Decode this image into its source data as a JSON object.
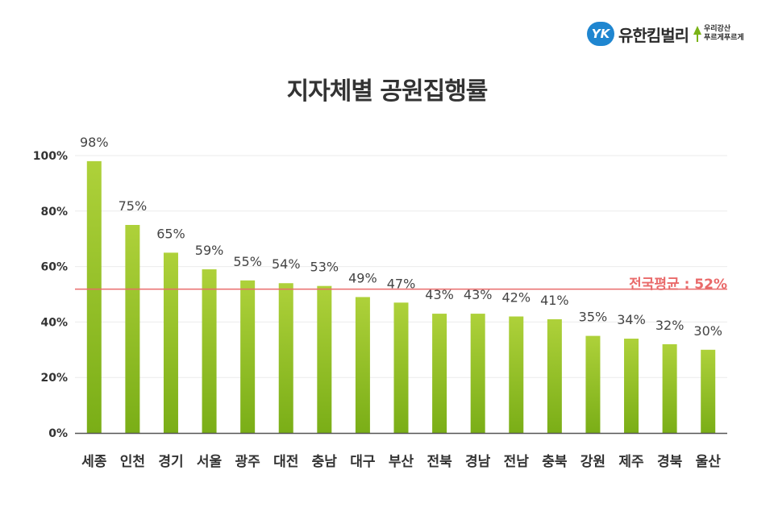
{
  "logo": {
    "brand": "유한킴벌리",
    "slogan_line1": "우리강산",
    "slogan_line2": "푸르게푸르게",
    "colors": {
      "brand": "#1f86d0",
      "tree": "#7ab317"
    }
  },
  "chart_data": {
    "type": "bar",
    "title": "지자체별 공원집행률",
    "xlabel": "",
    "ylabel": "",
    "ylim": [
      0,
      100
    ],
    "yticks": [
      0,
      20,
      40,
      60,
      80,
      100
    ],
    "ytick_labels": [
      "0%",
      "20%",
      "40%",
      "60%",
      "80%",
      "100%"
    ],
    "grid": true,
    "categories": [
      "세종",
      "인천",
      "경기",
      "서울",
      "광주",
      "대전",
      "충남",
      "대구",
      "부산",
      "전북",
      "경남",
      "전남",
      "충북",
      "강원",
      "제주",
      "경북",
      "울산"
    ],
    "values": [
      98,
      75,
      65,
      59,
      55,
      54,
      53,
      49,
      47,
      43,
      43,
      42,
      41,
      35,
      34,
      32,
      30
    ],
    "value_labels": [
      "98%",
      "75%",
      "65%",
      "59%",
      "55%",
      "54%",
      "53%",
      "49%",
      "47%",
      "43%",
      "43%",
      "42%",
      "41%",
      "35%",
      "34%",
      "32%",
      "30%"
    ],
    "reference_line": {
      "value": 52,
      "label": "전국평균 : 52%"
    },
    "colors": {
      "bar_top": "#aed13a",
      "bar_bottom": "#7aae17",
      "reference": "#e96a6a",
      "grid": "#ebebeb",
      "axis": "#555555"
    }
  }
}
